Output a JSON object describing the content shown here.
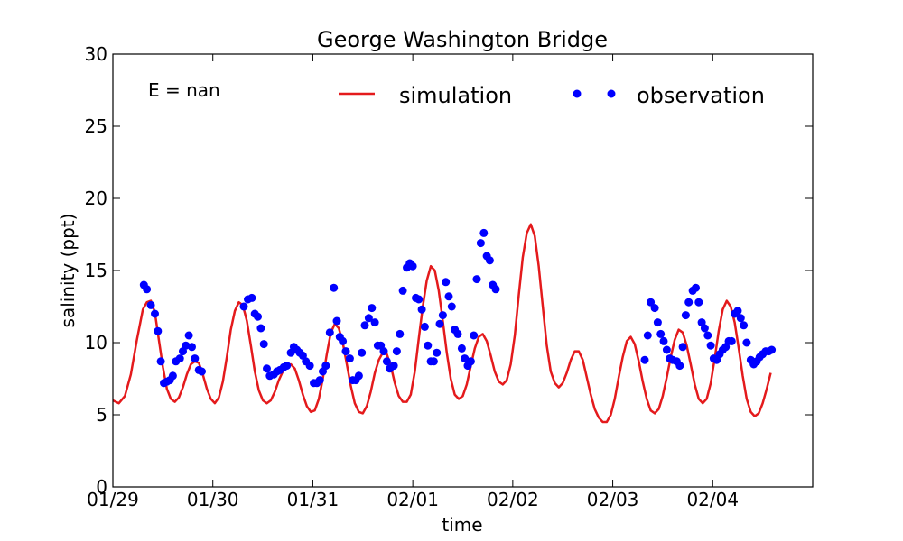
{
  "chart_data": {
    "type": "line",
    "title": "George Washington Bridge",
    "xlabel": "time",
    "ylabel": "salinity (ppt)",
    "annotation": "E = nan",
    "xlim": [
      0,
      7
    ],
    "ylim": [
      0,
      30
    ],
    "x_ticks": [
      {
        "v": 0,
        "label": "01/29"
      },
      {
        "v": 1,
        "label": "01/30"
      },
      {
        "v": 2,
        "label": "01/31"
      },
      {
        "v": 3,
        "label": "02/01"
      },
      {
        "v": 4,
        "label": "02/02"
      },
      {
        "v": 5,
        "label": "02/03"
      },
      {
        "v": 6,
        "label": "02/04"
      }
    ],
    "y_ticks": [
      0,
      5,
      10,
      15,
      20,
      25,
      30
    ],
    "legend": {
      "placement": "top-right"
    },
    "series": [
      {
        "name": "simulation",
        "style": "line",
        "color": "#e41a1c",
        "points": [
          [
            0.0,
            6.0
          ],
          [
            0.06,
            5.8
          ],
          [
            0.12,
            6.3
          ],
          [
            0.18,
            7.8
          ],
          [
            0.24,
            10.2
          ],
          [
            0.3,
            12.3
          ],
          [
            0.34,
            12.8
          ],
          [
            0.38,
            12.9
          ],
          [
            0.42,
            12.1
          ],
          [
            0.46,
            10.2
          ],
          [
            0.5,
            8.3
          ],
          [
            0.54,
            6.8
          ],
          [
            0.58,
            6.1
          ],
          [
            0.62,
            5.9
          ],
          [
            0.66,
            6.2
          ],
          [
            0.7,
            6.9
          ],
          [
            0.74,
            7.8
          ],
          [
            0.78,
            8.5
          ],
          [
            0.82,
            8.7
          ],
          [
            0.86,
            8.6
          ],
          [
            0.9,
            7.8
          ],
          [
            0.94,
            6.8
          ],
          [
            0.98,
            6.1
          ],
          [
            1.02,
            5.8
          ],
          [
            1.06,
            6.2
          ],
          [
            1.1,
            7.3
          ],
          [
            1.14,
            9.0
          ],
          [
            1.18,
            10.9
          ],
          [
            1.22,
            12.2
          ],
          [
            1.26,
            12.8
          ],
          [
            1.3,
            12.6
          ],
          [
            1.34,
            11.5
          ],
          [
            1.38,
            9.8
          ],
          [
            1.42,
            8.0
          ],
          [
            1.46,
            6.7
          ],
          [
            1.5,
            6.0
          ],
          [
            1.54,
            5.8
          ],
          [
            1.58,
            6.0
          ],
          [
            1.62,
            6.6
          ],
          [
            1.66,
            7.4
          ],
          [
            1.7,
            8.0
          ],
          [
            1.74,
            8.4
          ],
          [
            1.78,
            8.5
          ],
          [
            1.82,
            8.2
          ],
          [
            1.86,
            7.4
          ],
          [
            1.9,
            6.4
          ],
          [
            1.94,
            5.6
          ],
          [
            1.98,
            5.2
          ],
          [
            2.02,
            5.3
          ],
          [
            2.06,
            6.1
          ],
          [
            2.1,
            7.5
          ],
          [
            2.14,
            9.2
          ],
          [
            2.18,
            10.7
          ],
          [
            2.22,
            11.3
          ],
          [
            2.26,
            11.0
          ],
          [
            2.3,
            10.0
          ],
          [
            2.34,
            8.5
          ],
          [
            2.38,
            7.0
          ],
          [
            2.42,
            5.8
          ],
          [
            2.46,
            5.2
          ],
          [
            2.5,
            5.1
          ],
          [
            2.54,
            5.6
          ],
          [
            2.58,
            6.6
          ],
          [
            2.62,
            7.9
          ],
          [
            2.66,
            8.8
          ],
          [
            2.7,
            9.3
          ],
          [
            2.74,
            9.2
          ],
          [
            2.78,
            8.4
          ],
          [
            2.82,
            7.2
          ],
          [
            2.86,
            6.3
          ],
          [
            2.9,
            5.9
          ],
          [
            2.94,
            5.9
          ],
          [
            2.98,
            6.4
          ],
          [
            3.02,
            8.0
          ],
          [
            3.06,
            10.3
          ],
          [
            3.1,
            12.5
          ],
          [
            3.14,
            14.3
          ],
          [
            3.18,
            15.3
          ],
          [
            3.22,
            15.0
          ],
          [
            3.26,
            13.6
          ],
          [
            3.3,
            11.5
          ],
          [
            3.34,
            9.3
          ],
          [
            3.38,
            7.5
          ],
          [
            3.42,
            6.4
          ],
          [
            3.46,
            6.1
          ],
          [
            3.5,
            6.3
          ],
          [
            3.54,
            7.1
          ],
          [
            3.58,
            8.4
          ],
          [
            3.62,
            9.6
          ],
          [
            3.66,
            10.4
          ],
          [
            3.7,
            10.6
          ],
          [
            3.74,
            10.1
          ],
          [
            3.78,
            9.1
          ],
          [
            3.82,
            8.0
          ],
          [
            3.86,
            7.3
          ],
          [
            3.9,
            7.1
          ],
          [
            3.94,
            7.4
          ],
          [
            3.98,
            8.5
          ],
          [
            4.02,
            10.5
          ],
          [
            4.06,
            13.3
          ],
          [
            4.1,
            15.9
          ],
          [
            4.14,
            17.6
          ],
          [
            4.18,
            18.2
          ],
          [
            4.22,
            17.4
          ],
          [
            4.26,
            15.3
          ],
          [
            4.3,
            12.5
          ],
          [
            4.34,
            9.8
          ],
          [
            4.38,
            8.0
          ],
          [
            4.42,
            7.2
          ],
          [
            4.46,
            6.9
          ],
          [
            4.5,
            7.2
          ],
          [
            4.54,
            7.9
          ],
          [
            4.58,
            8.8
          ],
          [
            4.62,
            9.4
          ],
          [
            4.66,
            9.4
          ],
          [
            4.7,
            8.8
          ],
          [
            4.74,
            7.6
          ],
          [
            4.78,
            6.4
          ],
          [
            4.82,
            5.4
          ],
          [
            4.86,
            4.8
          ],
          [
            4.9,
            4.5
          ],
          [
            4.94,
            4.5
          ],
          [
            4.98,
            5.0
          ],
          [
            5.02,
            6.1
          ],
          [
            5.06,
            7.6
          ],
          [
            5.1,
            9.0
          ],
          [
            5.14,
            10.1
          ],
          [
            5.18,
            10.4
          ],
          [
            5.22,
            9.9
          ],
          [
            5.26,
            8.7
          ],
          [
            5.3,
            7.3
          ],
          [
            5.34,
            6.1
          ],
          [
            5.38,
            5.3
          ],
          [
            5.42,
            5.1
          ],
          [
            5.46,
            5.4
          ],
          [
            5.5,
            6.3
          ],
          [
            5.54,
            7.6
          ],
          [
            5.58,
            9.0
          ],
          [
            5.62,
            10.2
          ],
          [
            5.66,
            10.9
          ],
          [
            5.7,
            10.7
          ],
          [
            5.74,
            9.8
          ],
          [
            5.78,
            8.5
          ],
          [
            5.82,
            7.1
          ],
          [
            5.86,
            6.1
          ],
          [
            5.9,
            5.8
          ],
          [
            5.94,
            6.1
          ],
          [
            5.98,
            7.2
          ],
          [
            6.02,
            8.9
          ],
          [
            6.06,
            10.8
          ],
          [
            6.1,
            12.3
          ],
          [
            6.14,
            12.9
          ],
          [
            6.18,
            12.5
          ],
          [
            6.22,
            11.4
          ],
          [
            6.26,
            9.6
          ],
          [
            6.3,
            7.7
          ],
          [
            6.34,
            6.1
          ],
          [
            6.38,
            5.2
          ],
          [
            6.42,
            4.9
          ],
          [
            6.46,
            5.1
          ],
          [
            6.5,
            5.8
          ],
          [
            6.54,
            6.8
          ],
          [
            6.58,
            7.9
          ]
        ]
      },
      {
        "name": "observation",
        "style": "markers",
        "color": "#0000ff",
        "points": [
          [
            0.31,
            14.0
          ],
          [
            0.34,
            13.7
          ],
          [
            0.38,
            12.6
          ],
          [
            0.42,
            12.0
          ],
          [
            0.45,
            10.8
          ],
          [
            0.48,
            8.7
          ],
          [
            0.51,
            7.2
          ],
          [
            0.54,
            7.3
          ],
          [
            0.57,
            7.4
          ],
          [
            0.6,
            7.7
          ],
          [
            0.63,
            8.7
          ],
          [
            0.67,
            8.9
          ],
          [
            0.7,
            9.4
          ],
          [
            0.73,
            9.8
          ],
          [
            0.76,
            10.5
          ],
          [
            0.79,
            9.7
          ],
          [
            0.82,
            8.9
          ],
          [
            0.86,
            8.1
          ],
          [
            0.89,
            8.0
          ],
          [
            1.31,
            12.5
          ],
          [
            1.35,
            13.0
          ],
          [
            1.39,
            13.1
          ],
          [
            1.42,
            12.0
          ],
          [
            1.45,
            11.8
          ],
          [
            1.48,
            11.0
          ],
          [
            1.51,
            9.9
          ],
          [
            1.54,
            8.2
          ],
          [
            1.57,
            7.7
          ],
          [
            1.61,
            7.8
          ],
          [
            1.64,
            8.0
          ],
          [
            1.67,
            8.1
          ],
          [
            1.71,
            8.3
          ],
          [
            1.74,
            8.4
          ],
          [
            1.78,
            9.3
          ],
          [
            1.81,
            9.7
          ],
          [
            1.84,
            9.5
          ],
          [
            1.87,
            9.3
          ],
          [
            1.9,
            9.1
          ],
          [
            1.93,
            8.7
          ],
          [
            1.97,
            8.4
          ],
          [
            2.01,
            7.2
          ],
          [
            2.04,
            7.2
          ],
          [
            2.07,
            7.4
          ],
          [
            2.1,
            8.0
          ],
          [
            2.13,
            8.4
          ],
          [
            2.17,
            10.7
          ],
          [
            2.21,
            13.8
          ],
          [
            2.24,
            11.5
          ],
          [
            2.27,
            10.4
          ],
          [
            2.3,
            10.1
          ],
          [
            2.33,
            9.4
          ],
          [
            2.37,
            8.9
          ],
          [
            2.4,
            7.4
          ],
          [
            2.43,
            7.4
          ],
          [
            2.46,
            7.7
          ],
          [
            2.49,
            9.3
          ],
          [
            2.52,
            11.2
          ],
          [
            2.56,
            11.7
          ],
          [
            2.59,
            12.4
          ],
          [
            2.62,
            11.4
          ],
          [
            2.65,
            9.8
          ],
          [
            2.68,
            9.8
          ],
          [
            2.71,
            9.4
          ],
          [
            2.74,
            8.7
          ],
          [
            2.77,
            8.2
          ],
          [
            2.81,
            8.4
          ],
          [
            2.84,
            9.4
          ],
          [
            2.87,
            10.6
          ],
          [
            2.9,
            13.6
          ],
          [
            2.94,
            15.2
          ],
          [
            2.97,
            15.5
          ],
          [
            3.0,
            15.3
          ],
          [
            3.03,
            13.1
          ],
          [
            3.06,
            13.0
          ],
          [
            3.09,
            12.3
          ],
          [
            3.12,
            11.1
          ],
          [
            3.15,
            9.8
          ],
          [
            3.18,
            8.7
          ],
          [
            3.21,
            8.7
          ],
          [
            3.24,
            9.3
          ],
          [
            3.27,
            11.3
          ],
          [
            3.3,
            11.9
          ],
          [
            3.33,
            14.2
          ],
          [
            3.36,
            13.2
          ],
          [
            3.39,
            12.5
          ],
          [
            3.42,
            10.9
          ],
          [
            3.45,
            10.6
          ],
          [
            3.49,
            9.6
          ],
          [
            3.52,
            8.9
          ],
          [
            3.55,
            8.4
          ],
          [
            3.58,
            8.7
          ],
          [
            3.61,
            10.5
          ],
          [
            3.64,
            14.4
          ],
          [
            3.68,
            16.9
          ],
          [
            3.71,
            17.6
          ],
          [
            3.74,
            16.0
          ],
          [
            3.77,
            15.7
          ],
          [
            3.8,
            14.0
          ],
          [
            3.83,
            13.7
          ],
          [
            5.32,
            8.8
          ],
          [
            5.35,
            10.5
          ],
          [
            5.38,
            12.8
          ],
          [
            5.42,
            12.4
          ],
          [
            5.45,
            11.4
          ],
          [
            5.48,
            10.6
          ],
          [
            5.51,
            10.1
          ],
          [
            5.54,
            9.5
          ],
          [
            5.57,
            8.9
          ],
          [
            5.6,
            8.8
          ],
          [
            5.64,
            8.7
          ],
          [
            5.67,
            8.4
          ],
          [
            5.7,
            9.7
          ],
          [
            5.73,
            11.9
          ],
          [
            5.76,
            12.8
          ],
          [
            5.8,
            13.6
          ],
          [
            5.83,
            13.8
          ],
          [
            5.86,
            12.8
          ],
          [
            5.89,
            11.4
          ],
          [
            5.92,
            11.0
          ],
          [
            5.95,
            10.5
          ],
          [
            5.98,
            9.8
          ],
          [
            6.01,
            8.9
          ],
          [
            6.04,
            8.8
          ],
          [
            6.07,
            9.2
          ],
          [
            6.1,
            9.5
          ],
          [
            6.13,
            9.7
          ],
          [
            6.16,
            10.1
          ],
          [
            6.19,
            10.1
          ],
          [
            6.22,
            12.0
          ],
          [
            6.25,
            12.2
          ],
          [
            6.28,
            11.7
          ],
          [
            6.31,
            11.2
          ],
          [
            6.34,
            10.0
          ],
          [
            6.38,
            8.8
          ],
          [
            6.41,
            8.5
          ],
          [
            6.44,
            8.7
          ],
          [
            6.47,
            9.0
          ],
          [
            6.5,
            9.2
          ],
          [
            6.53,
            9.4
          ],
          [
            6.56,
            9.4
          ],
          [
            6.59,
            9.5
          ]
        ]
      }
    ]
  }
}
